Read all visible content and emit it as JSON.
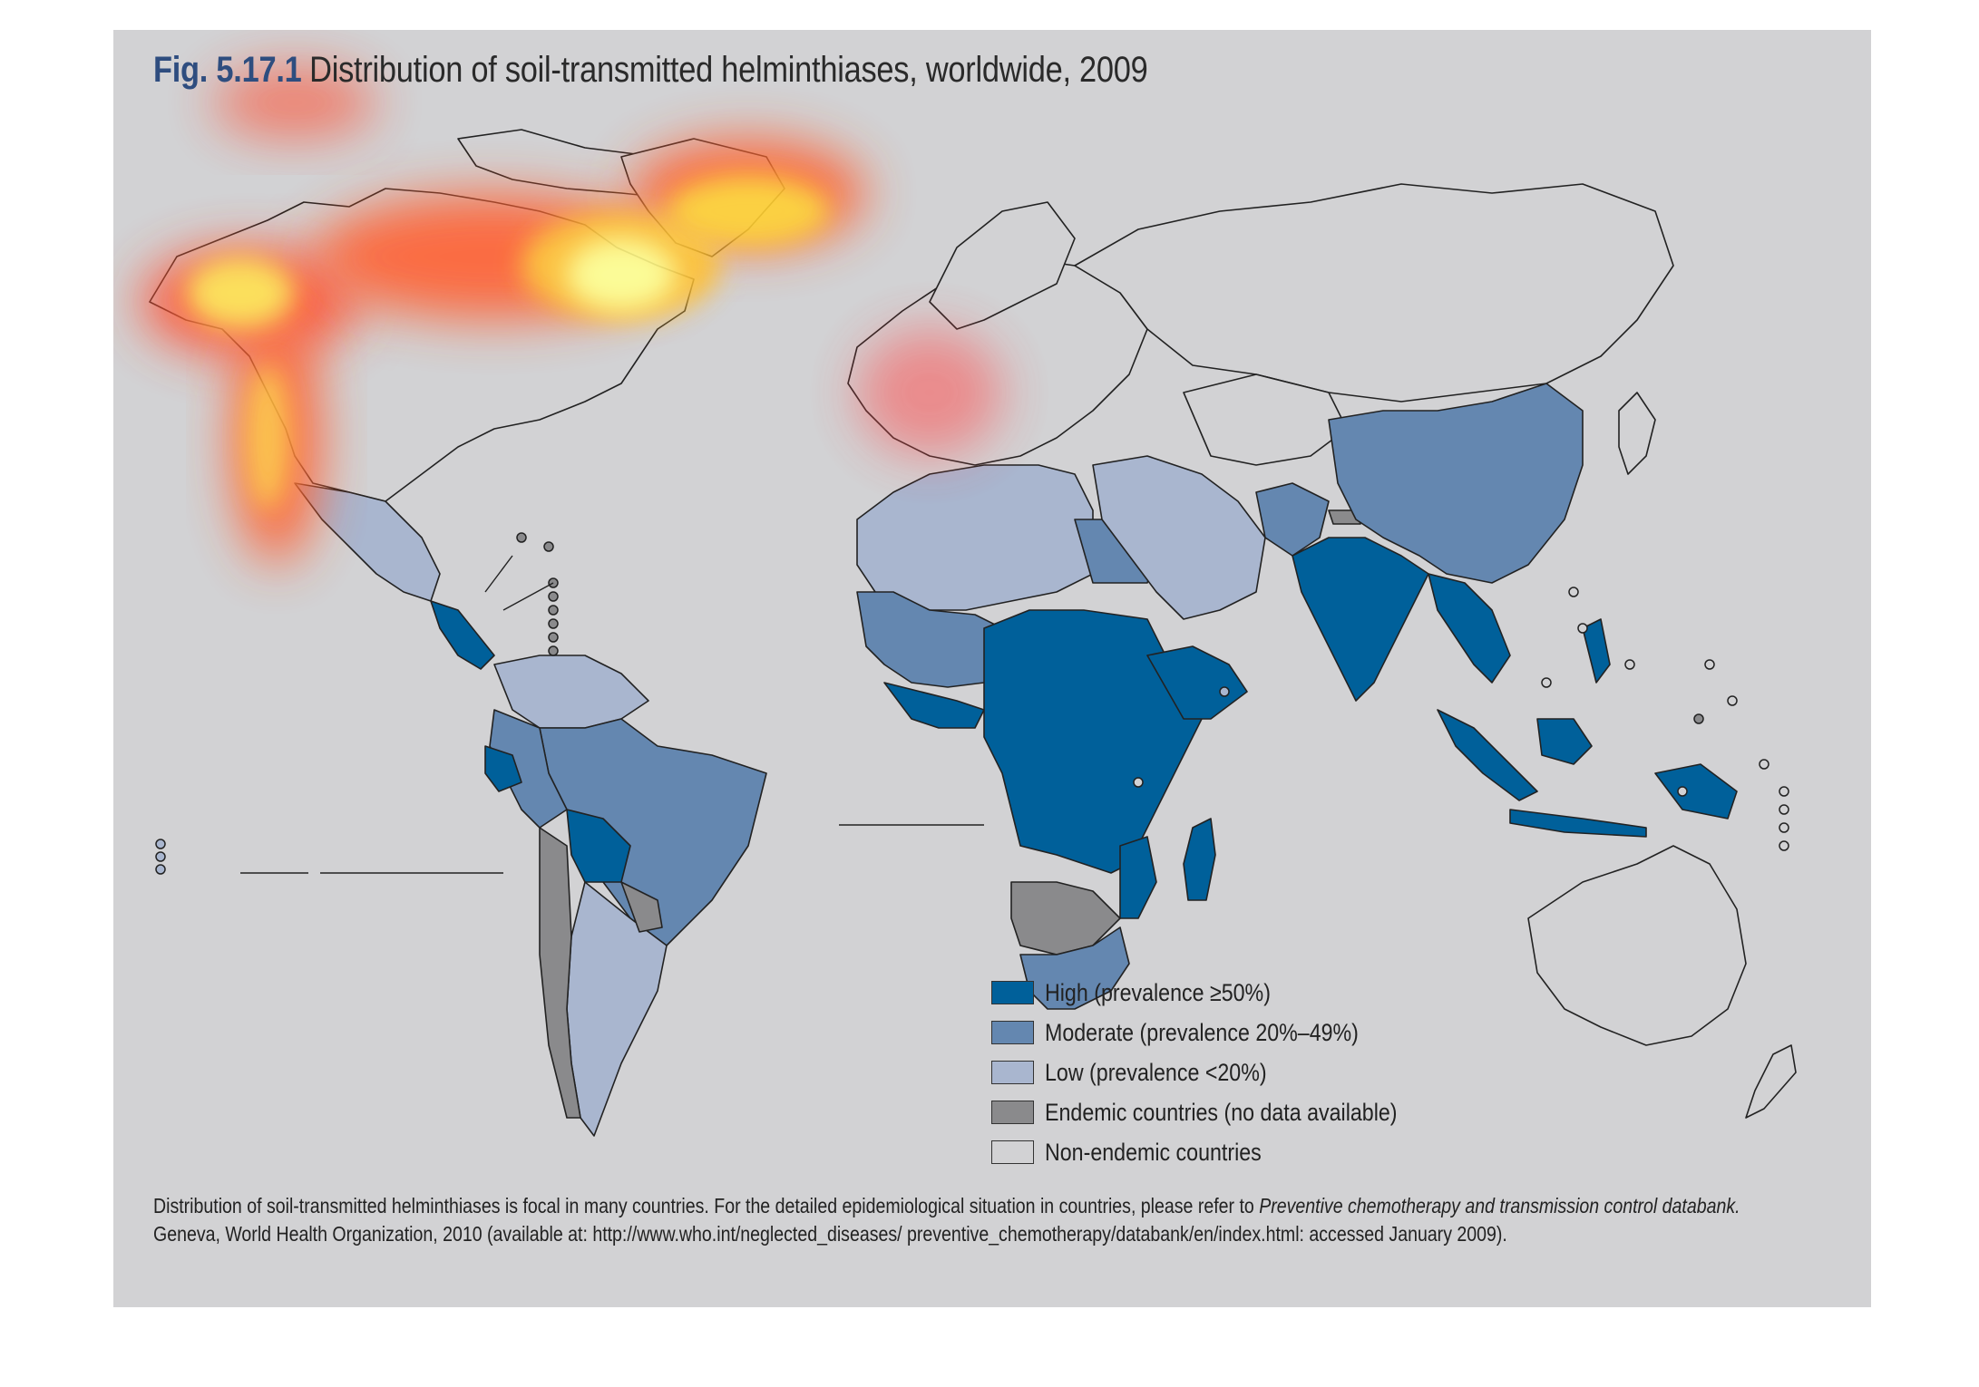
{
  "figure": {
    "number": "Fig. 5.17.1",
    "title": "Distribution of soil-transmitted helminthiases, worldwide, 2009"
  },
  "legend": [
    {
      "label": "High (prevalence ≥50%)",
      "color": "#00609a"
    },
    {
      "label": "Moderate (prevalence 20%–49%)",
      "color": "#6487b0"
    },
    {
      "label": "Low (prevalence <20%)",
      "color": "#a9b6cf"
    },
    {
      "label": "Endemic countries (no data available)",
      "color": "#8a8a8c"
    },
    {
      "label": "Non-endemic countries",
      "color": "#d2d2d4"
    }
  ],
  "footnote": {
    "text_before": "Distribution of soil-transmitted helminthiases is focal in many countries. For the detailed epidemiological situation in countries, please refer to ",
    "italic": "Preventive chemotherapy and transmission control databank.",
    "text_after": " Geneva, World Health Organization, 2010 (available at: http://www.who.int/neglected_diseases/ preventive_chemotherapy/databank/en/index.html: accessed January 2009)."
  },
  "colors": {
    "panel_background": "#d2d2d4",
    "outline": "#222222",
    "heat_overlay": [
      "#ffff80",
      "#ffd030",
      "#ff6030"
    ]
  }
}
